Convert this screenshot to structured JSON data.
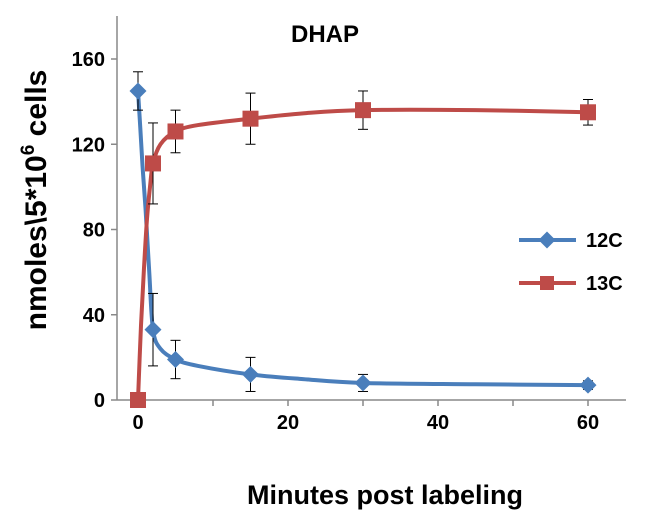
{
  "chart_data": {
    "type": "line",
    "title": "DHAP",
    "xlabel": "Minutes post labeling",
    "ylabel_main": "nmoles\\5*10",
    "ylabel_sup": "6",
    "ylabel_tail": " cells",
    "xlim": [
      -2,
      65
    ],
    "ylim": [
      0,
      170
    ],
    "xticks": [
      0,
      20,
      40,
      60
    ],
    "yticks": [
      0,
      40,
      80,
      120,
      160
    ],
    "grid": false,
    "legend_position": "right",
    "series": [
      {
        "name": "12C",
        "color": "#4a7ebb",
        "marker": "diamond",
        "x": [
          0,
          2,
          5,
          15,
          30,
          60
        ],
        "y": [
          145,
          33,
          19,
          12,
          8,
          7
        ],
        "err": [
          9,
          17,
          9,
          8,
          4,
          2
        ],
        "curve": [
          [
            0,
            145
          ],
          [
            0.3,
            128
          ],
          [
            0.6,
            110
          ],
          [
            1,
            90
          ],
          [
            1.5,
            60
          ],
          [
            2,
            33
          ],
          [
            3,
            24
          ],
          [
            5,
            19
          ],
          [
            8,
            16
          ],
          [
            15,
            12
          ],
          [
            22,
            9.8
          ],
          [
            30,
            8
          ],
          [
            45,
            7.4
          ],
          [
            60,
            7
          ]
        ]
      },
      {
        "name": "13C",
        "color": "#be4b48",
        "marker": "square",
        "x": [
          0,
          2,
          5,
          15,
          30,
          60
        ],
        "y": [
          0,
          111,
          126,
          132,
          136,
          135
        ],
        "err": [
          0,
          19,
          10,
          12,
          9,
          6
        ],
        "curve": [
          [
            0,
            0
          ],
          [
            0.4,
            35
          ],
          [
            0.8,
            62
          ],
          [
            1.2,
            85
          ],
          [
            1.6,
            100
          ],
          [
            2,
            111
          ],
          [
            3,
            120
          ],
          [
            5,
            126
          ],
          [
            8,
            129
          ],
          [
            15,
            132
          ],
          [
            22,
            134.5
          ],
          [
            30,
            136
          ],
          [
            45,
            136
          ],
          [
            60,
            135
          ]
        ]
      }
    ]
  }
}
